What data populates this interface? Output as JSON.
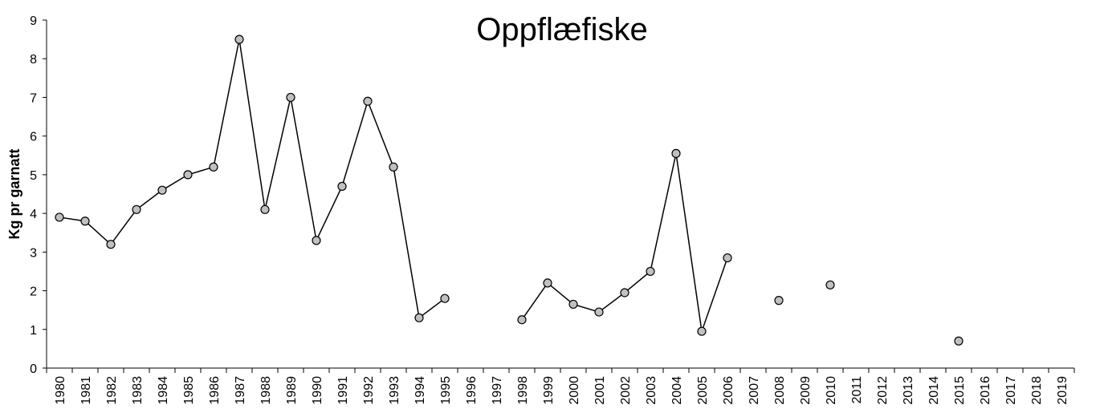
{
  "chart_data": {
    "type": "line",
    "title": "Oppflæfiske",
    "y_label": "Kg pr garnatt",
    "categories": [
      "1980",
      "1981",
      "1982",
      "1983",
      "1984",
      "1985",
      "1986",
      "1987",
      "1988",
      "1989",
      "1990",
      "1991",
      "1992",
      "1993",
      "1994",
      "1995",
      "1996",
      "1997",
      "1998",
      "1999",
      "2000",
      "2001",
      "2002",
      "2003",
      "2004",
      "2005",
      "2006",
      "2007",
      "2008",
      "2009",
      "2010",
      "2011",
      "2012",
      "2013",
      "2014",
      "2015",
      "2016",
      "2017",
      "2018",
      "2019"
    ],
    "values": [
      3.9,
      3.8,
      3.2,
      4.1,
      4.6,
      5.0,
      5.2,
      8.5,
      4.1,
      7.0,
      3.3,
      4.7,
      6.9,
      5.2,
      1.3,
      1.8,
      null,
      null,
      1.25,
      2.2,
      1.65,
      1.45,
      1.95,
      2.5,
      5.55,
      0.95,
      2.85,
      null,
      1.75,
      null,
      2.15,
      null,
      null,
      null,
      null,
      0.7,
      null,
      null,
      null,
      null
    ],
    "color": "#000000",
    "marker_color": "#c0c0c0",
    "ylim": [
      0,
      9
    ],
    "yticks": [
      0,
      1,
      2,
      3,
      4,
      5,
      6,
      7,
      8,
      9
    ],
    "grid": false
  }
}
